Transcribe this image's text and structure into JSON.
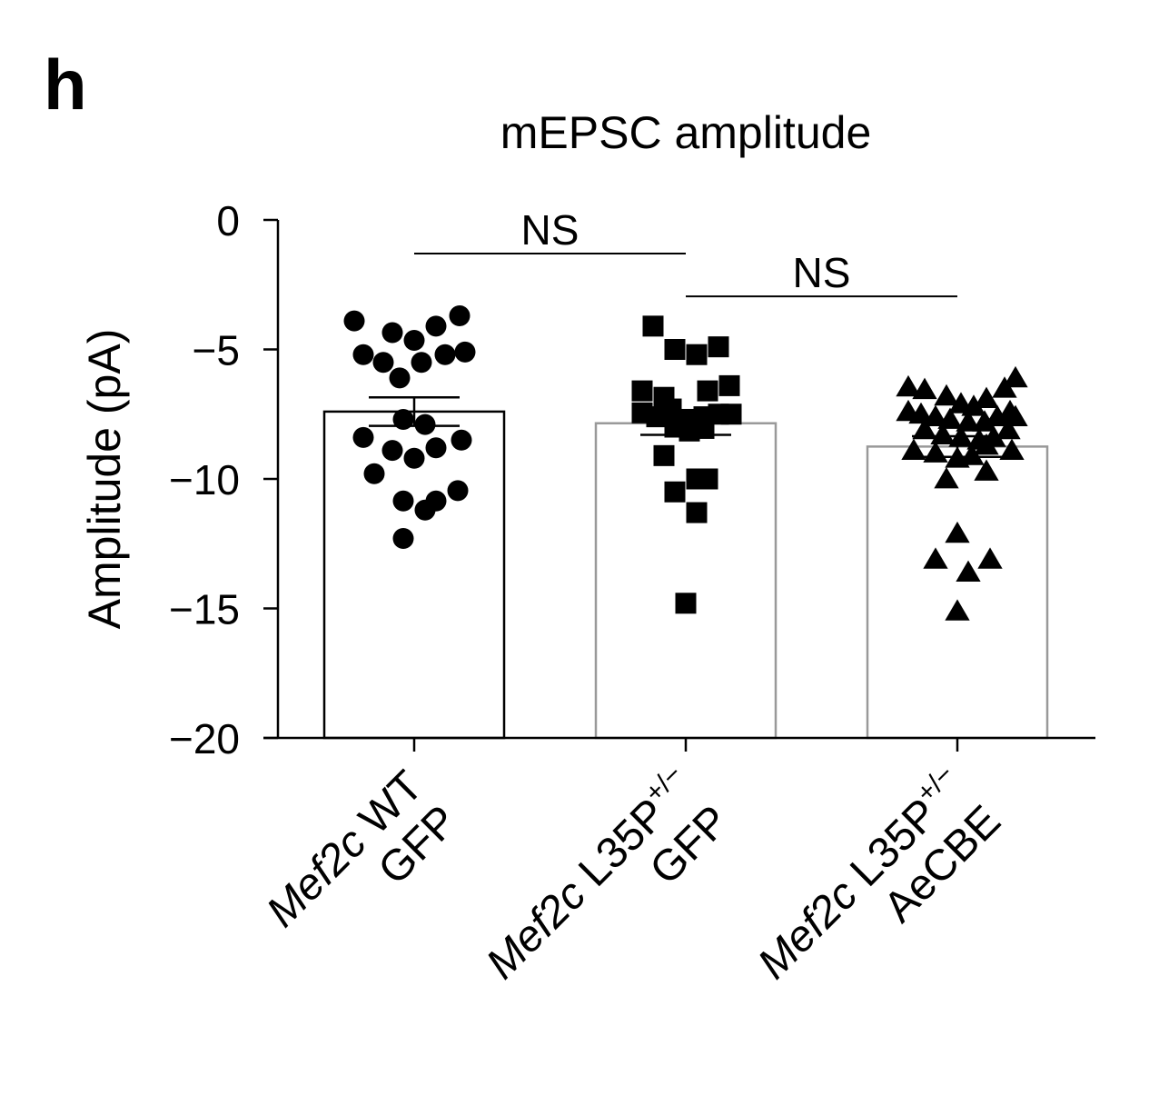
{
  "panel_label": "h",
  "chart_data": {
    "type": "bar",
    "title": "mEPSC amplitude",
    "ylabel": "Amplitude (pA)",
    "xlabel": "",
    "ylim": [
      -20,
      0
    ],
    "yticks": [
      0,
      -5,
      -10,
      -15,
      -20
    ],
    "ytick_labels": [
      "0",
      "−5",
      "−10",
      "−15",
      "−20"
    ],
    "grid": false,
    "categories": [
      {
        "line1": "Mef2c WT",
        "line2": "GFP",
        "sup": ""
      },
      {
        "line1": "Mef2c L35P",
        "line2": "GFP",
        "sup": "+/−"
      },
      {
        "line1": "Mef2c L35P",
        "line2": "AeCBE",
        "sup": "+/−"
      }
    ],
    "bar_colors": [
      "#000000",
      "#999999",
      "#999999"
    ],
    "values": [
      -7.4,
      -7.85,
      -8.75
    ],
    "sem": [
      0.55,
      0.45,
      0.4
    ],
    "marker": [
      "circle",
      "square",
      "triangle"
    ],
    "points": [
      [
        [
          -0.33,
          -3.9
        ],
        [
          -0.12,
          -4.35
        ],
        [
          0.0,
          -4.65
        ],
        [
          0.12,
          -4.1
        ],
        [
          0.25,
          -3.7
        ],
        [
          -0.28,
          -5.2
        ],
        [
          -0.17,
          -5.5
        ],
        [
          0.04,
          -5.5
        ],
        [
          0.17,
          -5.2
        ],
        [
          0.28,
          -5.1
        ],
        [
          -0.08,
          -6.1
        ],
        [
          -0.06,
          -7.7
        ],
        [
          0.06,
          -7.9
        ],
        [
          -0.28,
          -8.4
        ],
        [
          -0.12,
          -8.9
        ],
        [
          0.0,
          -9.2
        ],
        [
          0.12,
          -8.8
        ],
        [
          0.26,
          -8.5
        ],
        [
          -0.22,
          -9.8
        ],
        [
          -0.06,
          -10.85
        ],
        [
          0.06,
          -11.2
        ],
        [
          0.12,
          -10.85
        ],
        [
          0.24,
          -10.45
        ],
        [
          -0.06,
          -12.3
        ]
      ],
      [
        [
          -0.18,
          -4.1
        ],
        [
          -0.06,
          -5.0
        ],
        [
          0.06,
          -5.2
        ],
        [
          0.18,
          -4.9
        ],
        [
          -0.24,
          -6.6
        ],
        [
          -0.12,
          -6.85
        ],
        [
          0.12,
          -6.6
        ],
        [
          0.24,
          -6.4
        ],
        [
          -0.24,
          -7.45
        ],
        [
          -0.16,
          -7.6
        ],
        [
          -0.08,
          -7.3
        ],
        [
          0.02,
          -7.7
        ],
        [
          0.1,
          -7.6
        ],
        [
          0.18,
          -7.5
        ],
        [
          0.25,
          -7.5
        ],
        [
          -0.06,
          -8.0
        ],
        [
          0.02,
          -8.15
        ],
        [
          0.1,
          -8.05
        ],
        [
          -0.12,
          -9.1
        ],
        [
          -0.06,
          -10.5
        ],
        [
          0.06,
          -10.0
        ],
        [
          0.12,
          -10.0
        ],
        [
          0.06,
          -11.3
        ],
        [
          0.0,
          -14.8
        ]
      ],
      [
        [
          -0.27,
          -6.45
        ],
        [
          -0.18,
          -6.55
        ],
        [
          -0.06,
          -6.8
        ],
        [
          0.02,
          -7.1
        ],
        [
          0.09,
          -7.2
        ],
        [
          0.16,
          -6.9
        ],
        [
          0.26,
          -6.5
        ],
        [
          0.32,
          -6.1
        ],
        [
          -0.27,
          -7.4
        ],
        [
          -0.2,
          -7.5
        ],
        [
          -0.12,
          -7.6
        ],
        [
          -0.04,
          -7.7
        ],
        [
          0.06,
          -7.8
        ],
        [
          0.15,
          -7.8
        ],
        [
          0.22,
          -7.6
        ],
        [
          0.29,
          -7.4
        ],
        [
          0.32,
          -7.6
        ],
        [
          -0.18,
          -8.1
        ],
        [
          -0.08,
          -8.3
        ],
        [
          0.02,
          -8.4
        ],
        [
          0.12,
          -8.5
        ],
        [
          0.2,
          -8.4
        ],
        [
          0.28,
          -8.1
        ],
        [
          -0.24,
          -8.9
        ],
        [
          -0.12,
          -9.0
        ],
        [
          0.0,
          -9.2
        ],
        [
          0.08,
          -9.1
        ],
        [
          0.16,
          -8.7
        ],
        [
          0.3,
          -8.9
        ],
        [
          -0.06,
          -10.0
        ],
        [
          0.16,
          -9.7
        ],
        [
          0.0,
          -12.1
        ],
        [
          -0.12,
          -13.1
        ],
        [
          0.06,
          -13.6
        ],
        [
          0.18,
          -13.1
        ],
        [
          0.0,
          -15.1
        ]
      ]
    ],
    "annotations": [
      {
        "text": "NS",
        "from": 0,
        "to": 1,
        "y": -1.3
      },
      {
        "text": "NS",
        "from": 1,
        "to": 2,
        "y": -2.95
      }
    ]
  }
}
